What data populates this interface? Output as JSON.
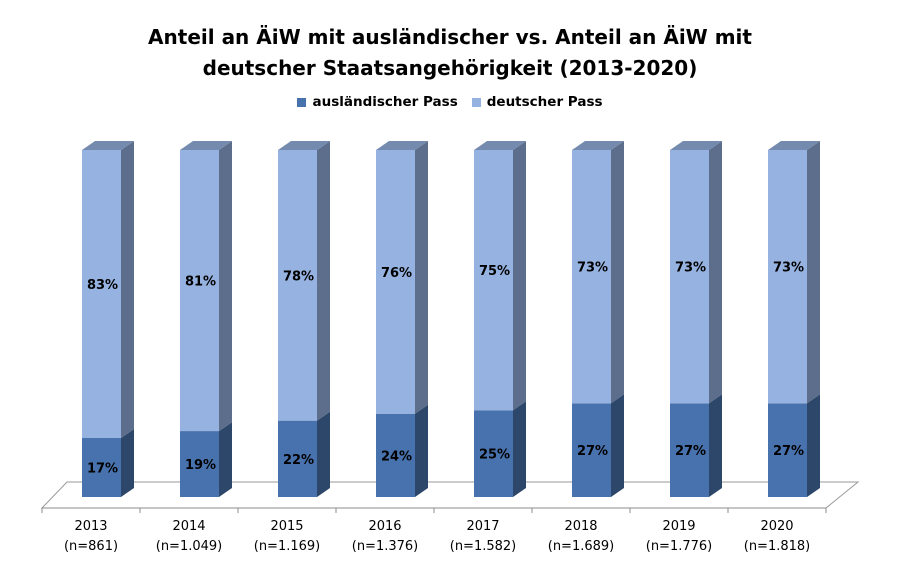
{
  "chart_data": {
    "type": "bar",
    "stacked": true,
    "percent_stacked": true,
    "three_d": true,
    "title_line1": "Anteil an ÄiW mit ausländischer vs. Anteil an ÄiW mit",
    "title_line2": "deutscher Staatsangehörigkeit (2013-2020)",
    "legend_position": "top",
    "categories": [
      "2013",
      "2014",
      "2015",
      "2016",
      "2017",
      "2018",
      "2019",
      "2020"
    ],
    "category_sublabels": [
      "(n=861)",
      "(n=1.049)",
      "(n=1.169)",
      "(n=1.376)",
      "(n=1.582)",
      "(n=1.689)",
      "(n=1.776)",
      "(n=1.818)"
    ],
    "ylim": [
      0,
      100
    ],
    "series": [
      {
        "name": "ausländischer Pass",
        "color": "#4872AD",
        "values": [
          17,
          19,
          22,
          24,
          25,
          27,
          27,
          27
        ],
        "labels": [
          "17%",
          "19%",
          "22%",
          "24%",
          "25%",
          "27%",
          "27%",
          "27%"
        ]
      },
      {
        "name": "deutscher Pass",
        "color": "#95B2E0",
        "values": [
          83,
          81,
          78,
          76,
          75,
          73,
          73,
          73
        ],
        "labels": [
          "83%",
          "81%",
          "78%",
          "76%",
          "75%",
          "73%",
          "73%",
          "73%"
        ]
      }
    ]
  }
}
